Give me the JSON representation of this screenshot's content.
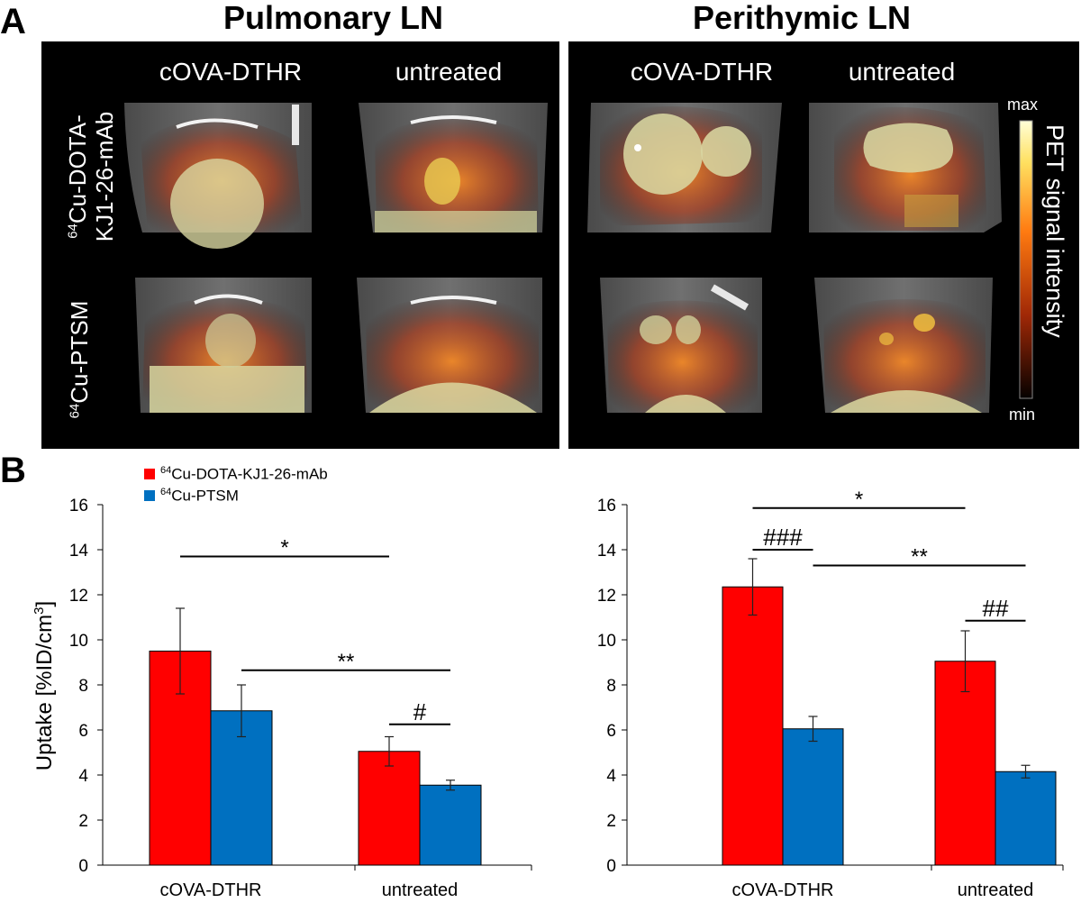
{
  "panels": {
    "a_label": "A",
    "b_label": "B"
  },
  "sections": {
    "left_title": "Pulmonary LN",
    "right_title": "Perithymic LN"
  },
  "images": {
    "col_labels": {
      "left_1": "cOVA-DTHR",
      "left_2": "untreated",
      "right_1": "cOVA-DTHR",
      "right_2": "untreated"
    },
    "row_labels": {
      "row1_sup": "64",
      "row1_line1": "Cu-DOTA-",
      "row1_line2": "KJ1-26-mAb",
      "row2_sup": "64",
      "row2_text": "Cu-PTSM"
    },
    "colorbar": {
      "max_label": "max",
      "min_label": "min",
      "title": "PET signal intensity"
    }
  },
  "legend": {
    "items": [
      {
        "sup": "64",
        "label": "Cu-DOTA-KJ1-26-mAb",
        "color": "#ff0000"
      },
      {
        "sup": "64",
        "label": "Cu-PTSM",
        "color": "#0070c0"
      }
    ]
  },
  "colors": {
    "red": "#ff0000",
    "blue": "#0070c0",
    "axis": "#000000"
  },
  "chart_data": [
    {
      "type": "bar",
      "title": "Pulmonary LN",
      "categories": [
        "cOVA-DTHR",
        "untreated"
      ],
      "series": [
        {
          "name": "64Cu-DOTA-KJ1-26-mAb",
          "values": [
            9.5,
            5.05
          ],
          "errors": [
            1.9,
            0.65
          ]
        },
        {
          "name": "64Cu-PTSM",
          "values": [
            6.85,
            3.55
          ],
          "errors": [
            1.15,
            0.22
          ]
        }
      ],
      "ylabel": "Uptake [%ID/cm3]",
      "ylabel_main": "Uptake [%ID/cm",
      "ylabel_sup": "3",
      "ylabel_end": "]",
      "ylim": [
        0,
        16
      ],
      "yticks": [
        0,
        2,
        4,
        6,
        8,
        10,
        12,
        14,
        16
      ],
      "annotations": [
        {
          "text": "*",
          "from_category": 0,
          "from_series": 0,
          "to_category": 1,
          "to_series": 0,
          "y": 13.7
        },
        {
          "text": "**",
          "from_category": 0,
          "from_series": 1,
          "to_category": 1,
          "to_series": 1,
          "y": 8.65
        },
        {
          "text": "#",
          "from_category": 1,
          "from_series": 0,
          "to_category": 1,
          "to_series": 1,
          "y": 6.25
        }
      ]
    },
    {
      "type": "bar",
      "title": "Perithymic LN",
      "categories": [
        "cOVA-DTHR",
        "untreated"
      ],
      "series": [
        {
          "name": "64Cu-DOTA-KJ1-26-mAb",
          "values": [
            12.35,
            9.05
          ],
          "errors": [
            1.25,
            1.35
          ]
        },
        {
          "name": "64Cu-PTSM",
          "values": [
            6.05,
            4.15
          ],
          "errors": [
            0.55,
            0.28
          ]
        }
      ],
      "ylabel": "",
      "ylim": [
        0,
        16
      ],
      "yticks": [
        0,
        2,
        4,
        6,
        8,
        10,
        12,
        14,
        16
      ],
      "annotations": [
        {
          "text": "*",
          "from_category": 0,
          "from_series": 0,
          "to_category": 1,
          "to_series": 0,
          "y": 15.85
        },
        {
          "text": "###",
          "from_category": 0,
          "from_series": 0,
          "to_category": 0,
          "to_series": 1,
          "y": 14.0
        },
        {
          "text": "**",
          "from_category": 0,
          "from_series": 1,
          "to_category": 1,
          "to_series": 1,
          "y": 13.3
        },
        {
          "text": "##",
          "from_category": 1,
          "from_series": 0,
          "to_category": 1,
          "to_series": 1,
          "y": 10.85
        }
      ]
    }
  ]
}
